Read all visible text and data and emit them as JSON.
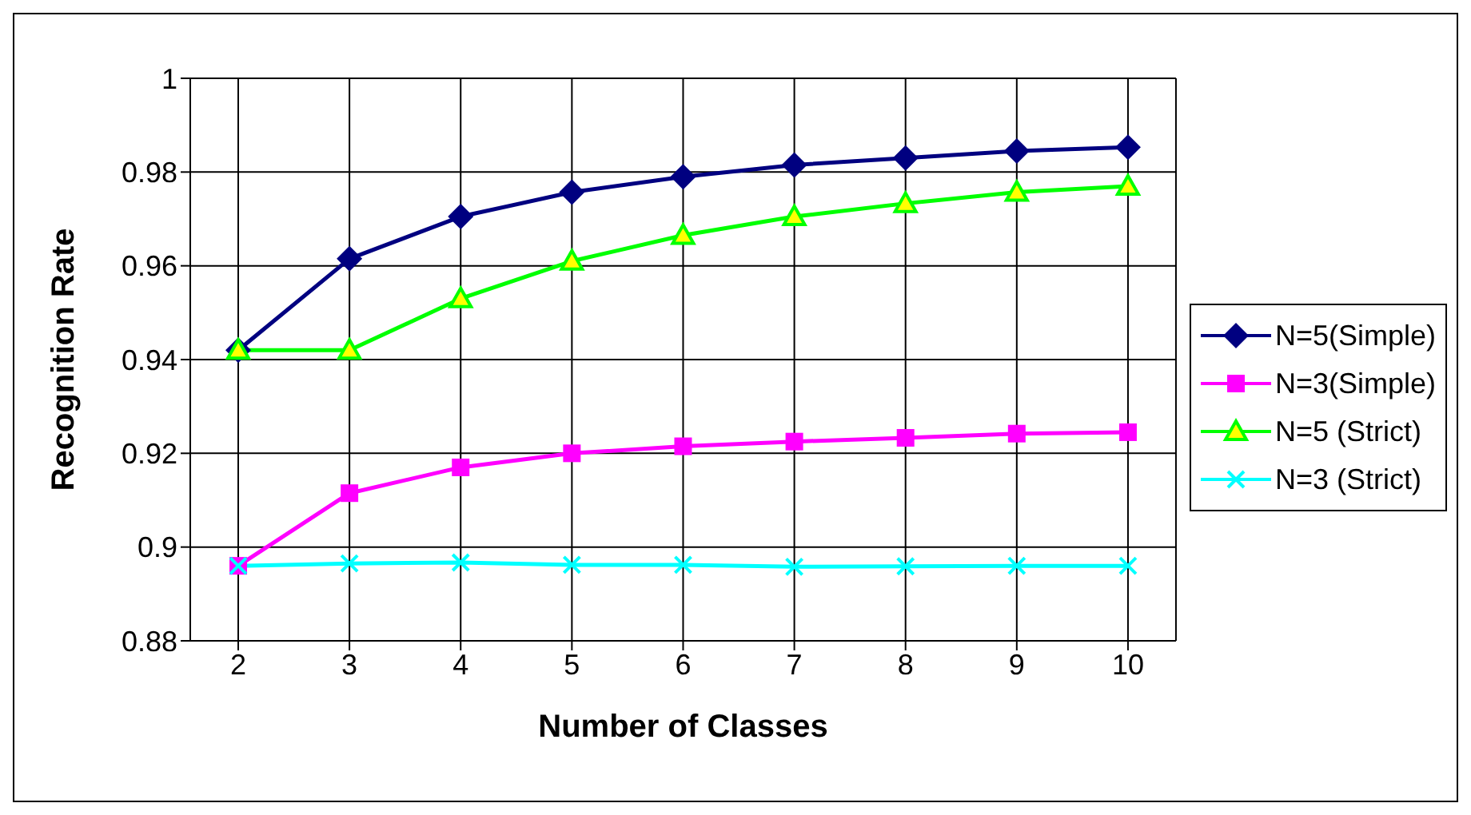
{
  "chart_data": {
    "type": "line",
    "xlabel": "Number of Classes",
    "ylabel": "Recognition Rate",
    "categories": [
      "2",
      "3",
      "4",
      "5",
      "6",
      "7",
      "8",
      "9",
      "10"
    ],
    "series": [
      {
        "name": "N=5(Simple)",
        "color": "#000080",
        "marker": "diamond",
        "values": [
          0.942,
          0.9615,
          0.9705,
          0.9757,
          0.979,
          0.9815,
          0.983,
          0.9845,
          0.9853
        ]
      },
      {
        "name": "N=3(Simple)",
        "color": "#ff00ff",
        "marker": "square",
        "values": [
          0.896,
          0.9115,
          0.917,
          0.92,
          0.9215,
          0.9225,
          0.9233,
          0.9242,
          0.9245
        ]
      },
      {
        "name": "N=5 (Strict)",
        "color": "#00ff00",
        "marker": "triangle",
        "values": [
          0.942,
          0.942,
          0.953,
          0.961,
          0.9665,
          0.9705,
          0.9733,
          0.9757,
          0.977
        ]
      },
      {
        "name": "N=3 (Strict)",
        "color": "#00ffff",
        "marker": "cross",
        "values": [
          0.896,
          0.8965,
          0.8967,
          0.8962,
          0.8962,
          0.8958,
          0.8959,
          0.896,
          0.896
        ]
      }
    ],
    "ylim": [
      0.88,
      1
    ],
    "yticks": [
      0.88,
      0.9,
      0.92,
      0.94,
      0.96,
      0.98,
      1
    ],
    "grid": true,
    "legend": "right"
  }
}
